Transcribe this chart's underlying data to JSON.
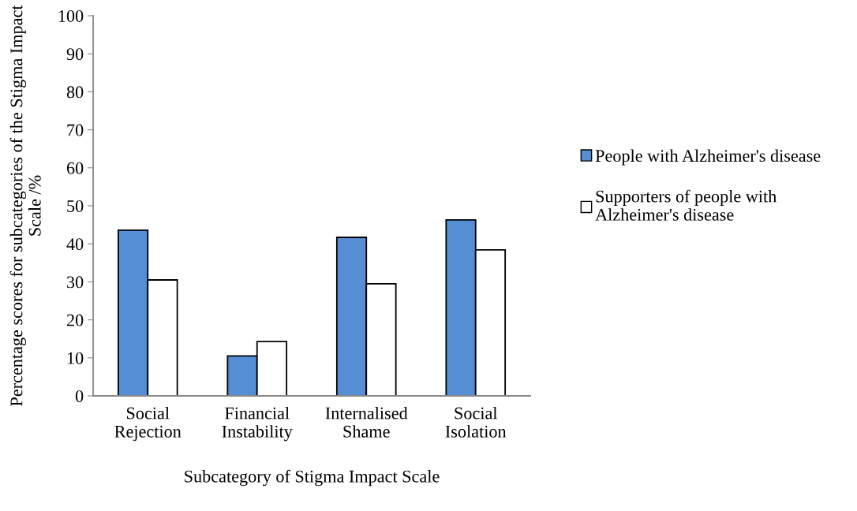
{
  "chart_data": {
    "type": "bar",
    "xlabel": "Subcategory of Stigma Impact Scale",
    "ylabel": "Percentage scores for subcategories of the Stigma Impact Scale /%",
    "categories": [
      "Social\nRejection",
      "Financial\nInstability",
      "Internalised\nShame",
      "Social\nIsolation"
    ],
    "series": [
      {
        "name": "People with Alzheimer's disease",
        "color": "#558ed5",
        "values": [
          43.6,
          10.5,
          41.7,
          46.3
        ]
      },
      {
        "name": "Supporters of people with\nAlzheimer's disease",
        "color": "#ffffff",
        "values": [
          30.5,
          14.3,
          29.5,
          38.4
        ]
      }
    ],
    "ylim": [
      0,
      100
    ],
    "yticks": [
      0,
      10,
      20,
      30,
      40,
      50,
      60,
      70,
      80,
      90,
      100
    ],
    "grid": false,
    "legend": "right"
  }
}
